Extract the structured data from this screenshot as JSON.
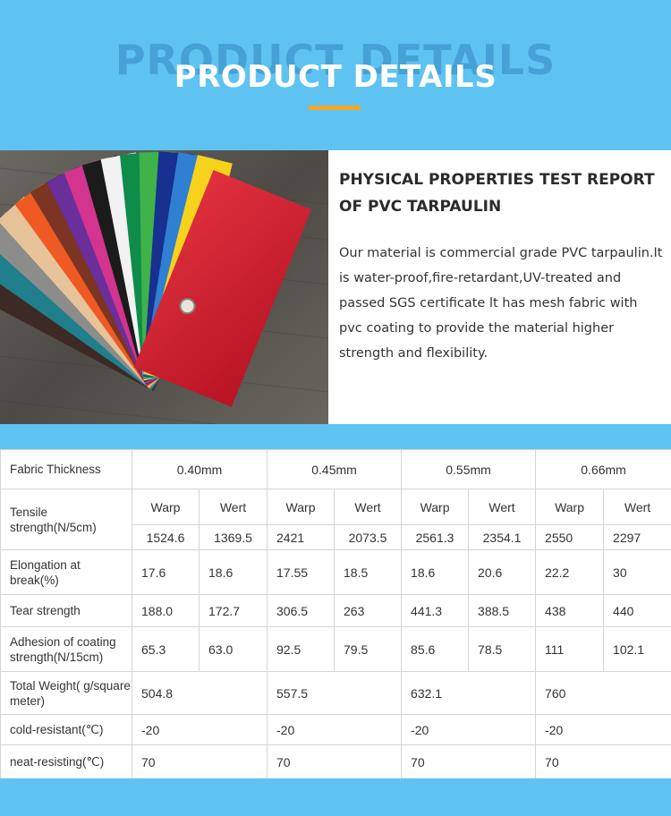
{
  "hero": {
    "ghost_text": "PRODUCT DETAILS",
    "title": "PRODUCT DETAILS"
  },
  "colors": {
    "hero": "#5ec3f1",
    "accent": "#f5a623"
  },
  "intro": {
    "image": "pvc-color-swatch-fan",
    "title": "PHYSICAL PROPERTIES TEST REPORT OF PVC TARPAULIN",
    "description": "Our material is commercial grade PVC tarpaulin.It is water-proof,fire-retardant,UV-treated and passed SGS certificate lt has mesh fabric with pvc coating to provide the material higher strength and flexibility."
  },
  "table": {
    "thickness_label": "Fabric Thickness",
    "thicknesses": [
      "0.40mm",
      "0.45mm",
      "0.55mm",
      "0.66mm"
    ],
    "tensile_label": "Tensile strength(N/5cm)",
    "directions": [
      "Warp",
      "Wert",
      "Warp",
      "Wert",
      "Warp",
      "Wert",
      "Warp",
      "Wert"
    ],
    "tensile_values": [
      "1524.6",
      "1369.5",
      "2421",
      "2073.5",
      "2561.3",
      "2354.1",
      "2550",
      "2297"
    ],
    "elongation_label": "Elongation at break(%)",
    "elongation_values": [
      "17.6",
      "18.6",
      "17.55",
      "18.5",
      "18.6",
      "20.6",
      "22.2",
      "30"
    ],
    "tear_label": "Tear strength",
    "tear_values": [
      "188.0",
      "172.7",
      "306.5",
      "263",
      "441.3",
      "388.5",
      "438",
      "440"
    ],
    "adhesion_label": "Adhesion of coating strength(N/15cm)",
    "adhesion_values": [
      "65.3",
      "63.0",
      "92.5",
      "79.5",
      "85.6",
      "78.5",
      "111",
      "102.1"
    ],
    "weight_label": "Total Weight( g/square meter)",
    "weight_values": [
      "504.8",
      "557.5",
      "632.1",
      "760"
    ],
    "cold_label": "cold-resistant(℃)",
    "cold_values": [
      "-20",
      "-20",
      "-20",
      "-20"
    ],
    "heat_label": "neat-resisting(℃)",
    "heat_values": [
      "70",
      "70",
      "70",
      "70"
    ]
  }
}
